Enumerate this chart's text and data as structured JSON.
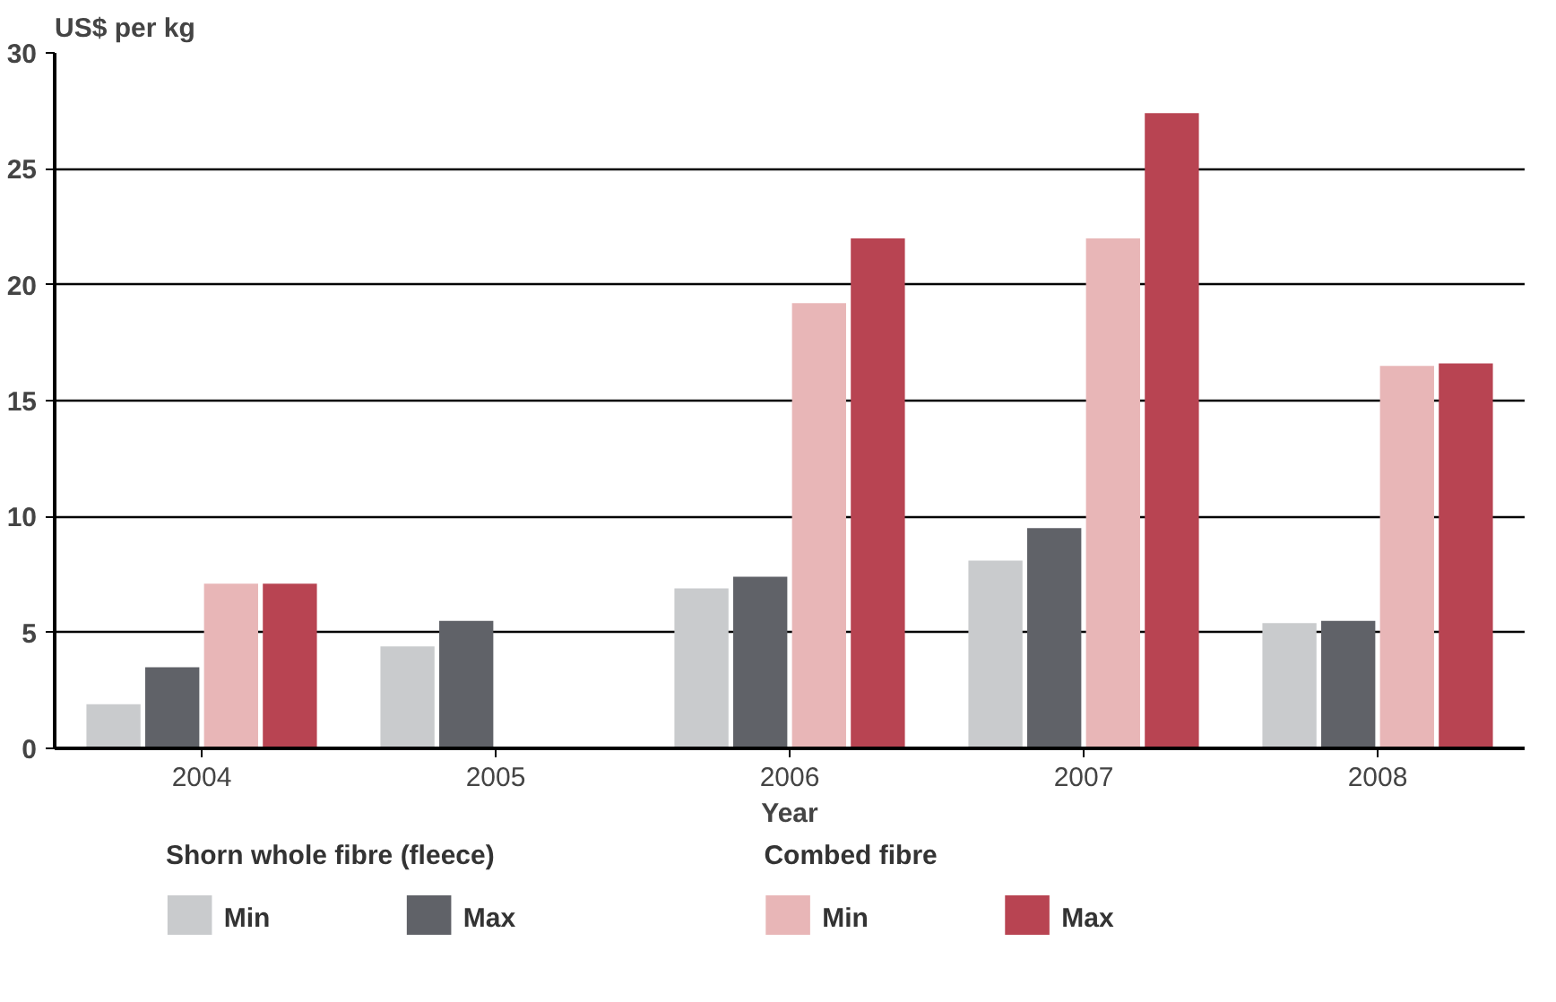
{
  "chart_data": {
    "type": "bar",
    "ylabel": "US$ per kg",
    "xlabel": "Year",
    "categories": [
      "2004",
      "2005",
      "2006",
      "2007",
      "2008"
    ],
    "series": [
      {
        "name": "Min",
        "color": "#c9cbcd",
        "values": [
          1.9,
          4.4,
          6.9,
          8.1,
          5.4
        ]
      },
      {
        "name": "Max",
        "color": "#606268",
        "values": [
          3.5,
          5.5,
          7.4,
          9.5,
          5.5
        ]
      },
      {
        "name": "Min",
        "color": "#e8b6b7",
        "values": [
          7.1,
          null,
          19.2,
          22.0,
          16.5
        ]
      },
      {
        "name": "Max",
        "color": "#b84452",
        "values": [
          7.1,
          null,
          22.0,
          27.4,
          16.6
        ]
      }
    ],
    "annotations": [
      "Shorn whole fibre (fleece)",
      "Combed fibre"
    ],
    "ylim": [
      0,
      30
    ],
    "yticks": [
      0,
      5,
      10,
      15,
      20,
      25,
      30
    ],
    "grid": "y",
    "legend": "bottom"
  }
}
